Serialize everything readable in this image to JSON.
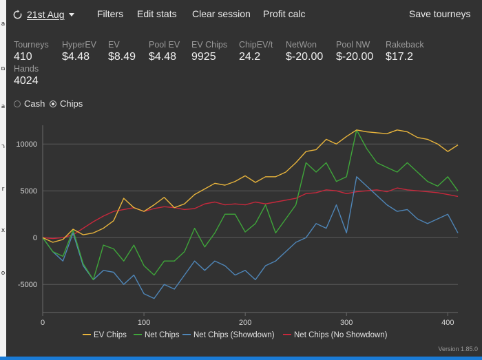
{
  "toolbar": {
    "date_label": "21st Aug",
    "filters": "Filters",
    "edit_stats": "Edit stats",
    "clear_session": "Clear session",
    "profit_calc": "Profit calc",
    "save_tourneys": "Save tourneys"
  },
  "stats": [
    {
      "label": "Tourneys",
      "value": "410"
    },
    {
      "label": "HyperEV",
      "value": "$4.48"
    },
    {
      "label": "EV",
      "value": "$8.49"
    },
    {
      "label": "Pool EV",
      "value": "$4.48"
    },
    {
      "label": "EV Chips",
      "value": "9925"
    },
    {
      "label": "ChipEV/t",
      "value": "24.2"
    },
    {
      "label": "NetWon",
      "value": "$-20.00"
    },
    {
      "label": "Pool NW",
      "value": "$-20.00"
    },
    {
      "label": "Rakeback",
      "value": "$17.2"
    },
    {
      "label": "Hands",
      "value": "4024"
    }
  ],
  "mode": {
    "options": [
      "Cash",
      "Chips"
    ],
    "selected": "Chips"
  },
  "chart_data": {
    "type": "line",
    "xlim": [
      0,
      410
    ],
    "ylim": [
      -8000,
      12000
    ],
    "x_ticks": [
      0,
      100,
      200,
      300,
      400
    ],
    "y_ticks": [
      -5000,
      0,
      5000,
      10000
    ],
    "grid": true,
    "legend_position": "bottom",
    "series": [
      {
        "name": "EV Chips",
        "color": "#e8b43c",
        "x": [
          0,
          10,
          20,
          30,
          40,
          50,
          60,
          70,
          80,
          90,
          100,
          110,
          120,
          130,
          140,
          150,
          160,
          170,
          180,
          190,
          200,
          210,
          220,
          230,
          240,
          250,
          260,
          270,
          280,
          290,
          300,
          310,
          320,
          330,
          340,
          350,
          360,
          370,
          380,
          390,
          400,
          410
        ],
        "y": [
          0,
          -500,
          -200,
          900,
          300,
          500,
          1000,
          1800,
          4200,
          3200,
          2800,
          3500,
          4300,
          3200,
          3600,
          4600,
          5200,
          5800,
          5600,
          6000,
          6600,
          5900,
          6500,
          6500,
          7000,
          8000,
          9200,
          9400,
          10500,
          10000,
          10800,
          11500,
          11300,
          11200,
          11100,
          11500,
          11300,
          10700,
          10500,
          10000,
          9200,
          9900
        ]
      },
      {
        "name": "Net Chips",
        "color": "#3fa63a",
        "x": [
          0,
          10,
          20,
          30,
          40,
          50,
          60,
          70,
          80,
          90,
          100,
          110,
          120,
          130,
          140,
          150,
          160,
          170,
          180,
          190,
          200,
          210,
          220,
          230,
          240,
          250,
          260,
          270,
          280,
          290,
          300,
          310,
          320,
          330,
          340,
          350,
          360,
          370,
          380,
          390,
          400,
          410
        ],
        "y": [
          0,
          -1500,
          -2000,
          800,
          -2800,
          -4500,
          -800,
          -1200,
          -2500,
          -800,
          -3000,
          -4000,
          -2500,
          -2500,
          -1500,
          1000,
          -1000,
          500,
          2500,
          2500,
          600,
          1500,
          3500,
          500,
          2000,
          3500,
          8000,
          7000,
          8000,
          6000,
          6500,
          11500,
          9500,
          8000,
          7500,
          7000,
          8000,
          7000,
          6000,
          5500,
          6500,
          5000
        ]
      },
      {
        "name": "Net Chips (Showdown)",
        "color": "#4f86b8",
        "x": [
          0,
          10,
          20,
          30,
          40,
          50,
          60,
          70,
          80,
          90,
          100,
          110,
          120,
          130,
          140,
          150,
          160,
          170,
          180,
          190,
          200,
          210,
          220,
          230,
          240,
          250,
          260,
          270,
          280,
          290,
          300,
          310,
          320,
          330,
          340,
          350,
          360,
          370,
          380,
          390,
          400,
          410
        ],
        "y": [
          0,
          -1500,
          -2500,
          500,
          -3000,
          -4500,
          -3500,
          -3700,
          -5000,
          -4000,
          -6000,
          -6500,
          -5000,
          -5500,
          -4000,
          -2500,
          -3500,
          -2500,
          -3000,
          -4000,
          -3500,
          -4500,
          -3000,
          -2500,
          -1500,
          -500,
          0,
          1500,
          1000,
          3500,
          500,
          6500,
          5500,
          4500,
          3500,
          2800,
          3000,
          2000,
          1500,
          2000,
          2500,
          500
        ]
      },
      {
        "name": "Net Chips (No Showdown)",
        "color": "#c8283c",
        "x": [
          0,
          10,
          20,
          30,
          40,
          50,
          60,
          70,
          80,
          90,
          100,
          110,
          120,
          130,
          140,
          150,
          160,
          170,
          180,
          190,
          200,
          210,
          220,
          230,
          240,
          250,
          260,
          270,
          280,
          290,
          300,
          310,
          320,
          330,
          340,
          350,
          360,
          370,
          380,
          390,
          400,
          410
        ],
        "y": [
          0,
          -100,
          0,
          300,
          1000,
          1700,
          2300,
          2800,
          3000,
          3200,
          2800,
          3100,
          3300,
          3200,
          3000,
          3100,
          3600,
          3800,
          3500,
          3600,
          3500,
          3800,
          3600,
          3800,
          4000,
          4200,
          4700,
          4800,
          5100,
          5000,
          4700,
          4900,
          5000,
          5100,
          4900,
          5300,
          5100,
          5000,
          4900,
          4800,
          4600,
          4400
        ]
      }
    ]
  },
  "version_label": "Version 1.85.0"
}
